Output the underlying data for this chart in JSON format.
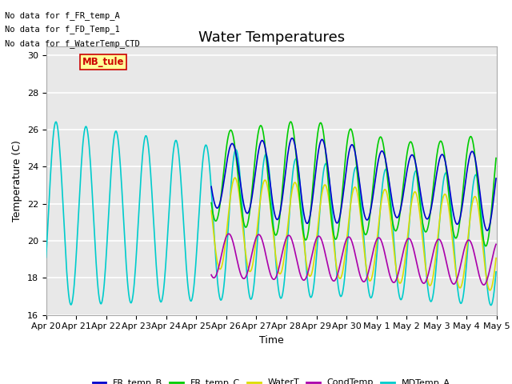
{
  "title": "Water Temperatures",
  "xlabel": "Time",
  "ylabel": "Temperature (C)",
  "ylim": [
    16,
    30.5
  ],
  "yticks": [
    16,
    18,
    20,
    22,
    24,
    26,
    28,
    30
  ],
  "xtick_labels": [
    "Apr 20",
    "Apr 21",
    "Apr 22",
    "Apr 23",
    "Apr 24",
    "Apr 25",
    "Apr 26",
    "Apr 27",
    "Apr 28",
    "Apr 29",
    "Apr 30",
    "May 1",
    "May 2",
    "May 3",
    "May 4",
    "May 5"
  ],
  "colors": {
    "FR_temp_B": "#0000cc",
    "FR_temp_C": "#00cc00",
    "WaterT": "#dddd00",
    "CondTemp": "#aa00aa",
    "MDTemp_A": "#00cccc"
  },
  "linewidth": 1.2,
  "plot_bg": "#e8e8e8",
  "no_data_text": [
    "No data for f_FR_temp_A",
    "No data for f_FD_Temp_1",
    "No data for f_WaterTemp_CTD"
  ],
  "mb_tule_label": "MB_tule",
  "mb_tule_color": "#cc0000",
  "mb_tule_bg": "#ffff99",
  "title_fontsize": 13,
  "axis_fontsize": 9,
  "legend_fontsize": 8,
  "tick_fontsize": 8
}
